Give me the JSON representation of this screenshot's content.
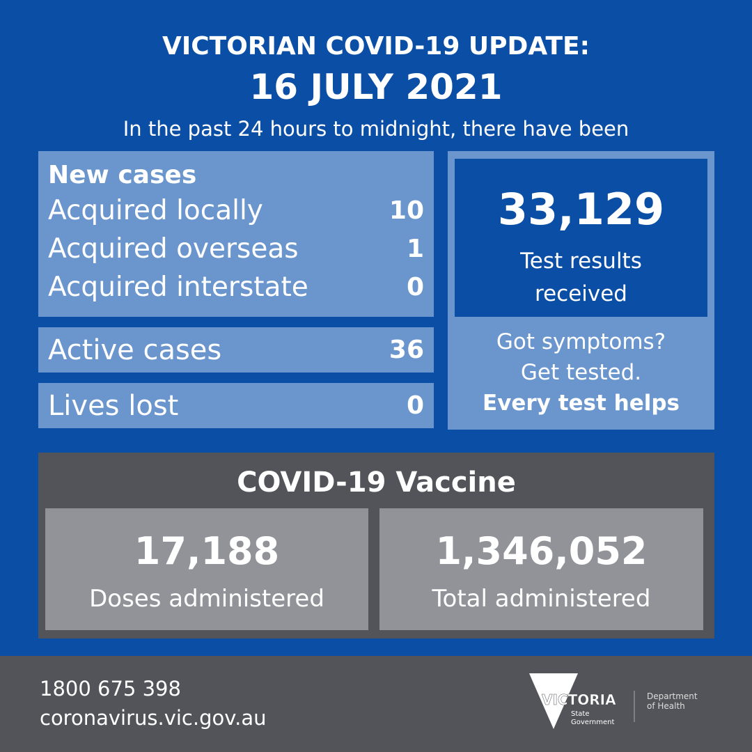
{
  "header": {
    "title": "VICTORIAN COVID-19 UPDATE:",
    "date": "16 JULY 2021",
    "subtitle": "In the past 24 hours to midnight, there have been"
  },
  "new_cases": {
    "heading": "New cases",
    "rows": [
      {
        "label": "Acquired locally",
        "value": "10"
      },
      {
        "label": "Acquired overseas",
        "value": "1"
      },
      {
        "label": "Acquired interstate",
        "value": "0"
      }
    ]
  },
  "active": {
    "label": "Active cases",
    "value": "36"
  },
  "lives": {
    "label": "Lives lost",
    "value": "0"
  },
  "tests": {
    "value": "33,129",
    "label_1": "Test results",
    "label_2": "received",
    "cta_1": "Got symptoms?",
    "cta_2": "Get tested.",
    "cta_3": "Every test helps"
  },
  "vaccine": {
    "title": "COVID-19 Vaccine",
    "doses_value": "17,188",
    "doses_label": "Doses administered",
    "total_value": "1,346,052",
    "total_label": "Total administered"
  },
  "footer": {
    "phone": "1800 675 398",
    "url": "coronavirus.vic.gov.au",
    "logo_text": "VICTORIA",
    "logo_sub_1": "State",
    "logo_sub_2": "Government",
    "dept_1": "Department",
    "dept_2": "of Health"
  },
  "colors": {
    "background": "#0b4ea6",
    "panel_light": "#6a96cd",
    "panel_gray": "#535459",
    "box_gray": "#929398"
  }
}
